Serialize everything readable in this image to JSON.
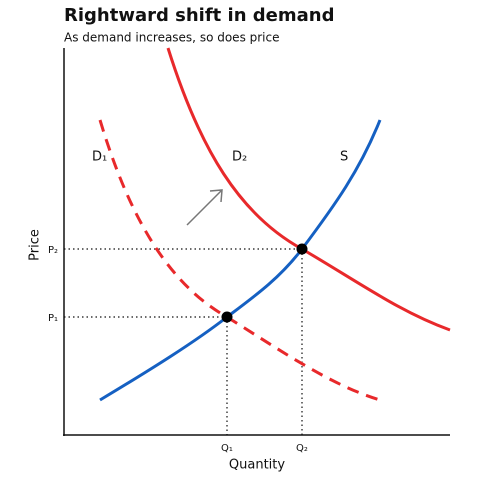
{
  "header": {
    "title": "Rightward shift in demand",
    "subtitle": "As demand increases, so does price"
  },
  "axes": {
    "x_label": "Quantity",
    "y_label": "Price"
  },
  "curves": {
    "demand_1": "D₁",
    "demand_2": "D₂",
    "supply": "S"
  },
  "ticks": {
    "p1": "P₁",
    "p2": "P₂",
    "q1": "Q₁",
    "q2": "Q₂"
  }
}
